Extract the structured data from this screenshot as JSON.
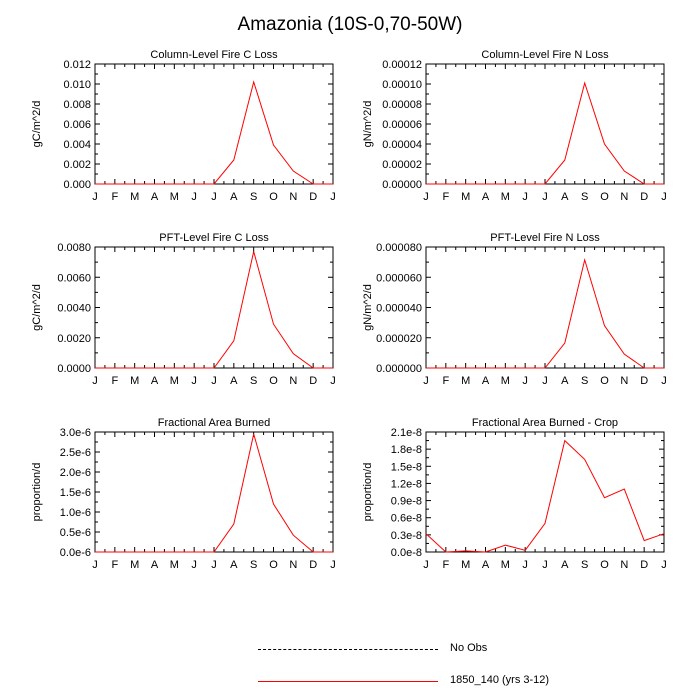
{
  "title": "Amazonia (10S-0,70-50W)",
  "colors": {
    "series": "#ff0000",
    "axis": "#000000",
    "obs": "#000000"
  },
  "legend": [
    {
      "label": "No Obs",
      "style": "dashed",
      "color": "#000000"
    },
    {
      "label": "1850_140 (yrs 3-12)",
      "style": "solid",
      "color": "#ff0000"
    }
  ],
  "chart_data": [
    {
      "type": "line",
      "title": "Column-Level Fire C Loss",
      "ylabel": "gC/m^2/d",
      "categories": [
        "J",
        "F",
        "M",
        "A",
        "M",
        "J",
        "J",
        "A",
        "S",
        "O",
        "N",
        "D",
        "J"
      ],
      "ylim": [
        0,
        0.012
      ],
      "yticks": [
        "0.000",
        "0.002",
        "0.004",
        "0.006",
        "0.008",
        "0.010",
        "0.012"
      ],
      "series": [
        {
          "name": "1850_140 (yrs 3-12)",
          "values": [
            0,
            0,
            0,
            0,
            0,
            0,
            0,
            0.0024,
            0.0102,
            0.0039,
            0.0013,
            0,
            0
          ]
        }
      ]
    },
    {
      "type": "line",
      "title": "Column-Level Fire N Loss",
      "ylabel": "gN/m^2/d",
      "categories": [
        "J",
        "F",
        "M",
        "A",
        "M",
        "J",
        "J",
        "A",
        "S",
        "O",
        "N",
        "D",
        "J"
      ],
      "ylim": [
        0,
        0.00012
      ],
      "yticks": [
        "0.00000",
        "0.00002",
        "0.00004",
        "0.00006",
        "0.00008",
        "0.00010",
        "0.00012"
      ],
      "series": [
        {
          "name": "1850_140 (yrs 3-12)",
          "values": [
            0,
            0,
            0,
            0,
            0,
            0,
            0,
            2.4e-05,
            0.000101,
            4e-05,
            1.3e-05,
            0,
            0
          ]
        }
      ]
    },
    {
      "type": "line",
      "title": "PFT-Level Fire C Loss",
      "ylabel": "gC/m^2/d",
      "categories": [
        "J",
        "F",
        "M",
        "A",
        "M",
        "J",
        "J",
        "A",
        "S",
        "O",
        "N",
        "D",
        "J"
      ],
      "ylim": [
        0,
        0.008
      ],
      "yticks": [
        "0.0000",
        "0.0020",
        "0.0040",
        "0.0060",
        "0.0080"
      ],
      "series": [
        {
          "name": "1850_140 (yrs 3-12)",
          "values": [
            0,
            0,
            0,
            0,
            0,
            0,
            0,
            0.0018,
            0.0077,
            0.0029,
            0.00095,
            0,
            0
          ]
        }
      ]
    },
    {
      "type": "line",
      "title": "PFT-Level Fire N Loss",
      "ylabel": "gN/m^2/d",
      "categories": [
        "J",
        "F",
        "M",
        "A",
        "M",
        "J",
        "J",
        "A",
        "S",
        "O",
        "N",
        "D",
        "J"
      ],
      "ylim": [
        0,
        8e-05
      ],
      "yticks": [
        "0.000000",
        "0.000020",
        "0.000040",
        "0.000060",
        "0.000080"
      ],
      "series": [
        {
          "name": "1850_140 (yrs 3-12)",
          "values": [
            0,
            0,
            0,
            0,
            0,
            0,
            0,
            1.65e-05,
            7.15e-05,
            2.8e-05,
            9.2e-06,
            0,
            0
          ]
        }
      ]
    },
    {
      "type": "line",
      "title": "Fractional Area Burned",
      "ylabel": "proportion/d",
      "categories": [
        "J",
        "F",
        "M",
        "A",
        "M",
        "J",
        "J",
        "A",
        "S",
        "O",
        "N",
        "D",
        "J"
      ],
      "ylim": [
        0,
        3e-06
      ],
      "yticks": [
        "0.0e-6",
        "0.5e-6",
        "1.0e-6",
        "1.5e-6",
        "2.0e-6",
        "2.5e-6",
        "3.0e-6"
      ],
      "series": [
        {
          "name": "1850_140 (yrs 3-12)",
          "values": [
            0,
            0,
            0,
            0,
            0,
            0,
            0,
            7e-07,
            2.95e-06,
            1.2e-06,
            4.2e-07,
            0,
            0
          ]
        }
      ]
    },
    {
      "type": "line",
      "title": "Fractional Area Burned - Crop",
      "ylabel": "proportion/d",
      "categories": [
        "J",
        "F",
        "M",
        "A",
        "M",
        "J",
        "J",
        "A",
        "S",
        "O",
        "N",
        "D",
        "J"
      ],
      "ylim": [
        0,
        2.1e-08
      ],
      "yticks": [
        "0.0e-8",
        "0.3e-8",
        "0.6e-8",
        "0.9e-8",
        "1.2e-8",
        "1.5e-8",
        "1.8e-8",
        "2.1e-8"
      ],
      "series": [
        {
          "name": "1850_140 (yrs 3-12)",
          "values": [
            3.2e-09,
            0.0,
            2e-10,
            0.0,
            1.2e-09,
            3e-10,
            5e-09,
            1.95e-08,
            1.62e-08,
            9.5e-09,
            1.1e-08,
            2e-09,
            3.2e-09
          ]
        }
      ]
    }
  ]
}
